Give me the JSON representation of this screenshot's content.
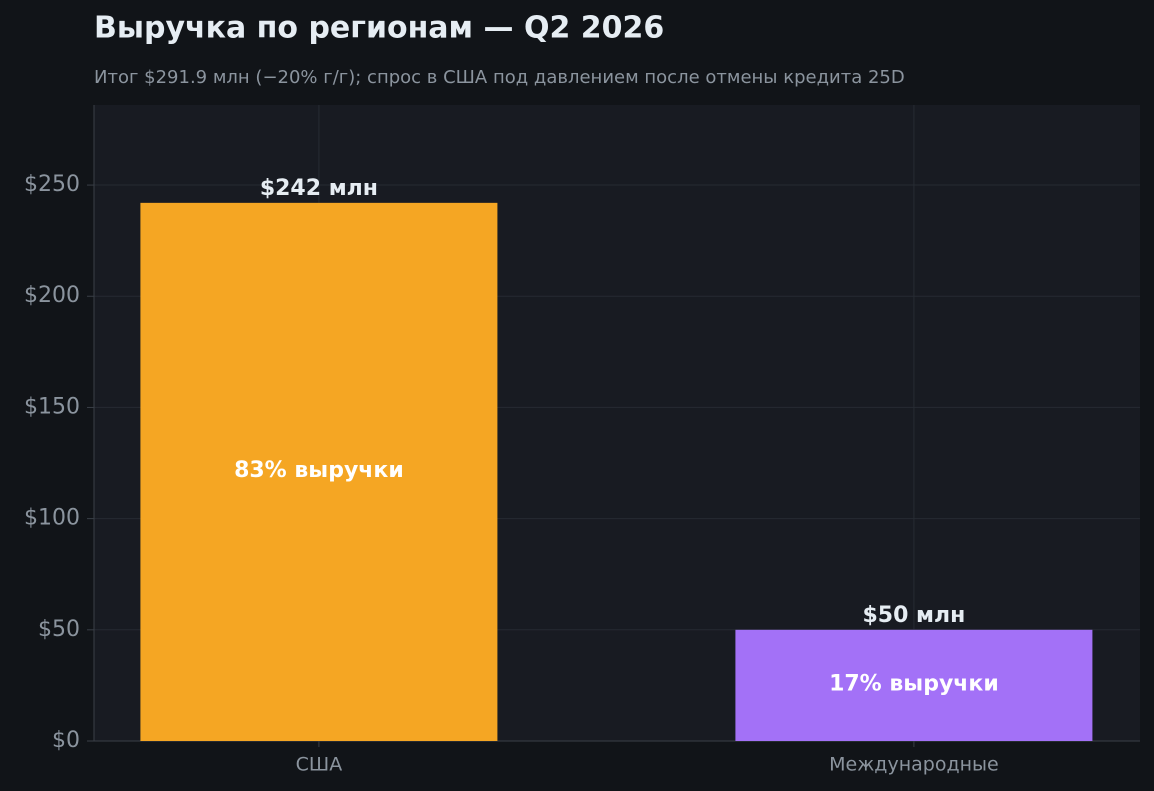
{
  "chart_data": {
    "type": "bar",
    "title": "Выручка по регионам — Q2 2026",
    "subtitle": "Итог $291.9 млн (−20% г/г); спрос в США под давлением после отмены кредита 25D",
    "categories": [
      "США",
      "Международные"
    ],
    "values": [
      242,
      50
    ],
    "value_labels": [
      "$242 млн",
      "$50 млн"
    ],
    "share_labels": [
      "83% выручки",
      "17% выручки"
    ],
    "colors": [
      "#f5a623",
      "#a371f7"
    ],
    "ylim": [
      0,
      286
    ],
    "yticks": [
      {
        "value": 0,
        "label": "$0"
      },
      {
        "value": 50,
        "label": "$50"
      },
      {
        "value": 100,
        "label": "$100"
      },
      {
        "value": 150,
        "label": "$150"
      },
      {
        "value": 200,
        "label": "$200"
      },
      {
        "value": 250,
        "label": "$250"
      }
    ],
    "grid": true
  }
}
